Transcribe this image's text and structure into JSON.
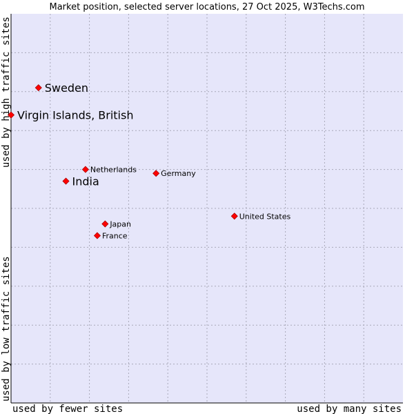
{
  "chart_data": {
    "type": "scatter",
    "title": "Market position, selected server locations, 27 Oct 2025, W3Techs.com",
    "xlabel_left": "used by fewer sites",
    "xlabel_right": "used by many sites",
    "ylabel_bottom": "used by low traffic sites",
    "ylabel_top": "used by high traffic sites",
    "xlim": [
      0,
      10
    ],
    "ylim": [
      0,
      10
    ],
    "grid": true,
    "colors": {
      "plot_bg": "#e6e6fa",
      "grid": "#a8a8b8",
      "marker": "#ff0000",
      "marker_edge": "#aa0000",
      "axis": "#000000"
    },
    "points": [
      {
        "label": "Sweden",
        "x": 0.7,
        "y": 8.1,
        "size": "large"
      },
      {
        "label": "Virgin Islands, British",
        "x": 0.0,
        "y": 7.4,
        "size": "large"
      },
      {
        "label": "Netherlands",
        "x": 1.9,
        "y": 6.0,
        "size": "small"
      },
      {
        "label": "India",
        "x": 1.4,
        "y": 5.7,
        "size": "large"
      },
      {
        "label": "Germany",
        "x": 3.7,
        "y": 5.9,
        "size": "small"
      },
      {
        "label": "United States",
        "x": 5.7,
        "y": 4.8,
        "size": "small"
      },
      {
        "label": "Japan",
        "x": 2.4,
        "y": 4.6,
        "size": "small"
      },
      {
        "label": "France",
        "x": 2.2,
        "y": 4.3,
        "size": "small"
      }
    ]
  }
}
